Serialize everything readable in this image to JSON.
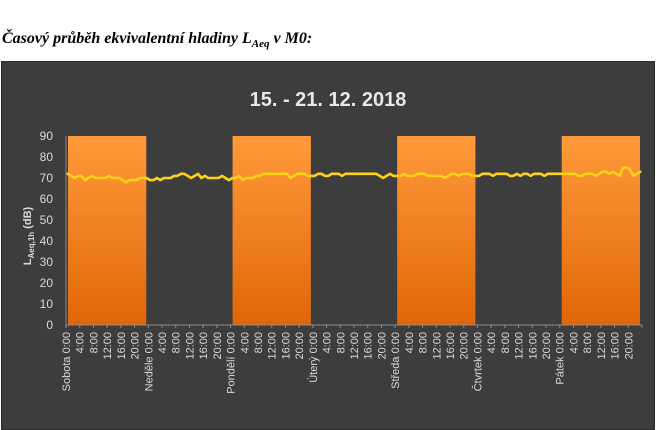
{
  "caption": {
    "prefix": "Časový průběh ekvivalentní hladiny L",
    "sub": "Aeq",
    "suffix": " v M0:"
  },
  "chart_data": {
    "type": "line",
    "title": "15. - 21. 12. 2018",
    "ylabel": "LAeq,1h (dB)",
    "ylabel_main": "L",
    "ylabel_sub": "Aeq,1h",
    "ylabel_unit": " (dB)",
    "ylim": [
      0,
      90
    ],
    "yticks": [
      0,
      10,
      20,
      30,
      40,
      50,
      60,
      70,
      80,
      90
    ],
    "grid": false,
    "x_tick_labels": [
      "Sobota 0:00",
      "4:00",
      "8:00",
      "12:00",
      "16:00",
      "20:00",
      "Neděle 0:00",
      "4:00",
      "8:00",
      "12:00",
      "16:00",
      "20:00",
      "Pondělí 0:00",
      "4:00",
      "8:00",
      "12:00",
      "16:00",
      "20:00",
      "Úterý 0:00",
      "4:00",
      "8:00",
      "12:00",
      "16:00",
      "20:00",
      "Středa 0:00",
      "4:00",
      "8:00",
      "12:00",
      "16:00",
      "20:00",
      "Čtvrtek 0:00",
      "4:00",
      "8:00",
      "12:00",
      "16:00",
      "20:00",
      "Pátek 0:00",
      "4:00",
      "8:00",
      "12:00",
      "16:00",
      "20:00"
    ],
    "x_tick_step_hours": 4,
    "hours_total": 168,
    "highlight_value": 90,
    "highlight_days": [
      {
        "day": "Sobota",
        "start_hour": 0,
        "end_hour": 24
      },
      {
        "day": "Pondělí",
        "start_hour": 48,
        "end_hour": 72
      },
      {
        "day": "Středa",
        "start_hour": 96,
        "end_hour": 120
      },
      {
        "day": "Pátek",
        "start_hour": 144,
        "end_hour": 168
      }
    ],
    "series": [
      {
        "values": [
          72,
          71,
          70,
          71,
          71,
          69,
          70,
          71,
          70,
          70,
          70,
          70,
          71,
          70,
          70,
          70,
          69,
          68,
          69,
          69,
          69,
          70,
          70,
          70,
          69,
          69,
          70,
          69,
          70,
          70,
          70,
          71,
          71,
          72,
          72,
          71,
          70,
          71,
          72,
          70,
          71,
          70,
          70,
          70,
          70,
          71,
          70,
          69,
          70,
          70,
          71,
          69,
          70,
          70,
          70,
          71,
          71,
          72,
          72,
          72,
          72,
          72,
          72,
          72,
          72,
          70,
          71,
          72,
          72,
          72,
          71,
          71,
          71,
          72,
          72,
          71,
          71,
          72,
          72,
          72,
          71,
          72,
          72,
          72,
          72,
          72,
          72,
          72,
          72,
          72,
          72,
          71,
          70,
          71,
          72,
          71,
          71,
          71,
          72,
          71,
          71,
          71,
          72,
          72,
          72,
          71,
          71,
          71,
          71,
          71,
          70,
          71,
          72,
          72,
          71,
          72,
          72,
          72,
          71,
          71,
          71,
          72,
          72,
          72,
          71,
          72,
          72,
          72,
          72,
          71,
          71,
          72,
          71,
          72,
          72,
          71,
          72,
          72,
          72,
          71,
          72,
          72,
          72,
          72,
          72,
          72,
          72,
          72,
          72,
          71,
          71,
          72,
          72,
          72,
          71,
          72,
          73,
          73,
          72,
          73,
          72,
          71,
          75,
          75,
          74,
          71,
          72,
          73
        ]
      }
    ]
  },
  "colors": {
    "background": "#3d3d3d",
    "bar_top": "#ff9a3a",
    "bar_bottom": "#e06608",
    "line": "#ffd21a",
    "axis": "#8c8c8c",
    "text": "#d9d9d9"
  }
}
